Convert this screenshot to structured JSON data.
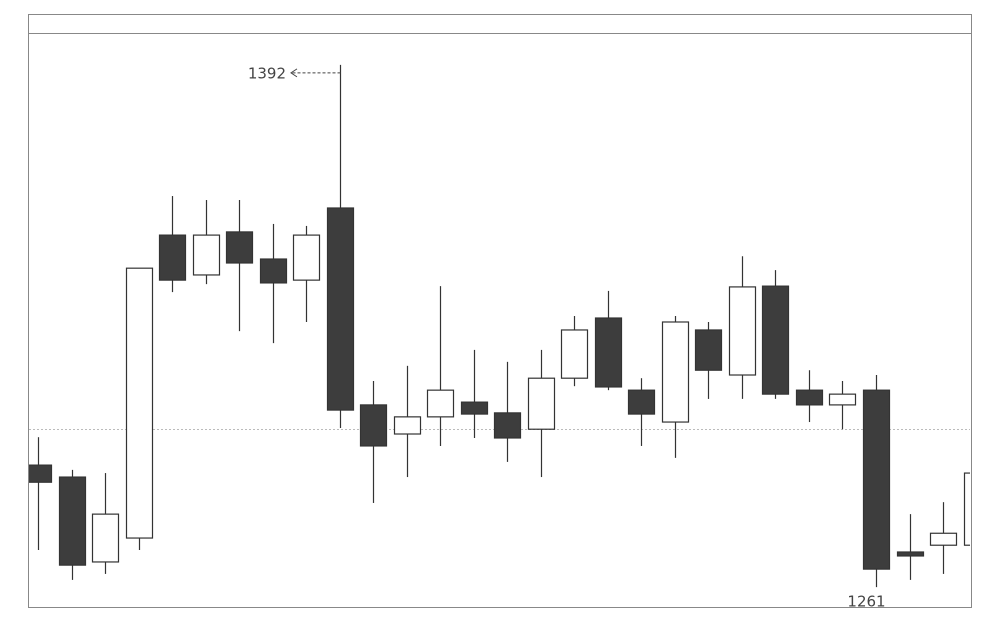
{
  "chart_data": {
    "type": "candlestick",
    "open": [
      1291.6,
      1288.6,
      1267.3,
      1273.3,
      1349.3,
      1339.3,
      1350.1,
      1343.3,
      1338,
      1356.1,
      1306.7,
      1299.4,
      1303.7,
      1307.4,
      1304.7,
      1300.6,
      1313.4,
      1328.5,
      1310.4,
      1302.4,
      1325.5,
      1314.2,
      1336.5,
      1310.4,
      1306.7,
      1310.4,
      1269.8,
      1271.5,
      1271.5
    ],
    "high": [
      1298.6,
      1290.4,
      1289.6,
      1341,
      1359.1,
      1358.1,
      1358.1,
      1352.1,
      1351.6,
      1392,
      1312.7,
      1316.5,
      1336.5,
      1320.5,
      1317.5,
      1320.5,
      1329,
      1335.3,
      1313.4,
      1329,
      1327.5,
      1344,
      1340.5,
      1315.4,
      1312.7,
      1314.2,
      1279.3,
      1282.3,
      1289.9
    ],
    "low": [
      1270.3,
      1262.8,
      1264.3,
      1270.3,
      1335,
      1337,
      1325.2,
      1322.2,
      1327.5,
      1300.9,
      1282.1,
      1288.6,
      1296.4,
      1298.4,
      1292.4,
      1288.6,
      1311.4,
      1310.4,
      1296.4,
      1293.4,
      1308.2,
      1308.2,
      1308.2,
      1302.4,
      1300.6,
      1261,
      1262.8,
      1264.3,
      1271.5
    ],
    "close": [
      1287.3,
      1266.5,
      1279.3,
      1341,
      1338,
      1349.3,
      1342.3,
      1337.3,
      1349.3,
      1305.4,
      1296.4,
      1303.7,
      1310.4,
      1304.4,
      1298.4,
      1313.4,
      1325.5,
      1311.2,
      1304.4,
      1327.5,
      1315.4,
      1336.3,
      1309.4,
      1306.7,
      1309.4,
      1265.5,
      1268.8,
      1274.5,
      1289.6
    ],
    "up_color": "#ffffff",
    "down_color": "#3d3d3d",
    "price_line": 1300.7,
    "ylim": [
      1256,
      1400
    ],
    "annotations": [
      {
        "text": "1392",
        "value": 1392
      },
      {
        "text": "1261",
        "value": 1261
      }
    ]
  }
}
